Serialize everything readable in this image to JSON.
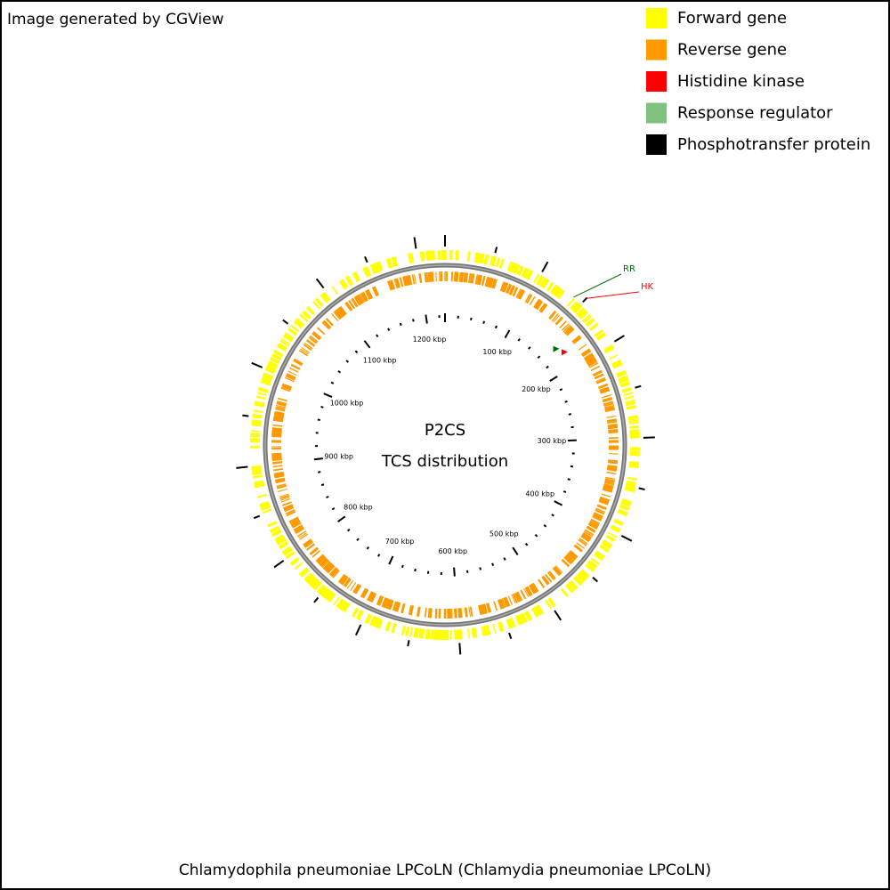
{
  "header": {
    "credit": "Image generated by CGView"
  },
  "legend": [
    {
      "label": "Forward gene",
      "color": "#ffff00"
    },
    {
      "label": "Reverse gene",
      "color": "#ff9900"
    },
    {
      "label": "Histidine kinase",
      "color": "#ff0000"
    },
    {
      "label": "Response regulator",
      "color": "#80c080"
    },
    {
      "label": "Phosphotransfer protein",
      "color": "#000000"
    }
  ],
  "map": {
    "title": "P2CS",
    "subtitle": "TCS distribution",
    "scale_labels": [
      "100 kbp",
      "200 kbp",
      "300 kbp",
      "400 kbp",
      "500 kbp",
      "600 kbp",
      "700 kbp",
      "800 kbp",
      "900 kbp",
      "1000 kbp",
      "1100 kbp",
      "1200 kbp"
    ],
    "features": [
      {
        "label": "RR",
        "color": "#007000"
      },
      {
        "label": "HK",
        "color": "#ff0000"
      }
    ]
  },
  "footer": {
    "organism": "Chlamydophila pneumoniae LPCoLN (Chlamydia pneumoniae LPCoLN)"
  }
}
